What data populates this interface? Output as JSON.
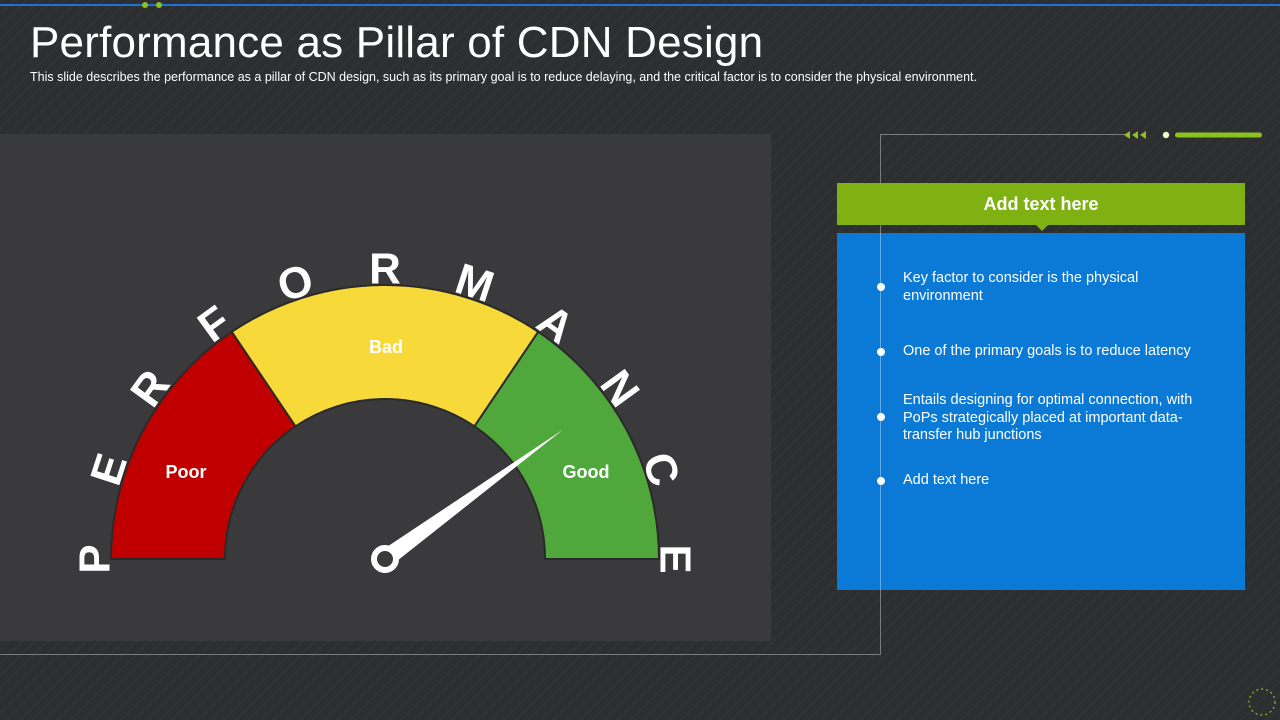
{
  "slide": {
    "title": "Performance as Pillar of CDN Design",
    "subtitle": "This slide describes the performance  as a pillar of CDN design, such as its primary goal is to reduce delaying, and the critical factor is to consider the physical environment."
  },
  "gauge": {
    "arc_letters": [
      "P",
      "E",
      "R",
      "F",
      "O",
      "R",
      "M",
      "A",
      "N",
      "C",
      "E"
    ],
    "segments": [
      {
        "label": "Poor",
        "color": "#c00000"
      },
      {
        "label": "Bad",
        "color": "#f7d93a"
      },
      {
        "label": "Good",
        "color": "#50a83c"
      }
    ],
    "needle_color": "#ffffff",
    "needle_value_fraction": 0.8
  },
  "info_panel": {
    "header": "Add text here",
    "header_color": "#7fb113",
    "box_color": "#0a7ad6",
    "bullets": [
      "Key factor to consider is the physical environment",
      "One of the primary goals is to reduce latency",
      "Entails designing for optimal connection, with PoPs strategically placed at important data-transfer hub junctions",
      "Add text here"
    ]
  },
  "colors": {
    "background": "#2d2e30",
    "accent_blue": "#1e73d6",
    "accent_green": "#8cc21f"
  }
}
